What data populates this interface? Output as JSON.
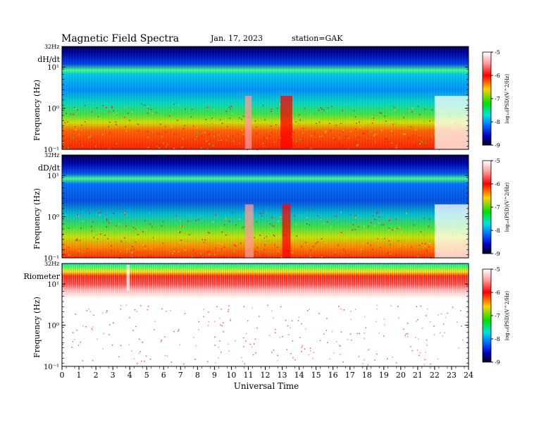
{
  "header": {
    "title": "Magnetic  Field  Spectra",
    "date": "Jan. 17, 2023",
    "station": "station=GAK"
  },
  "chart_data": {
    "type": "heatmap",
    "xlabel": "Universal Time",
    "x_ticks": [
      "0",
      "1",
      "2",
      "3",
      "4",
      "5",
      "6",
      "7",
      "8",
      "9",
      "10",
      "11",
      "12",
      "13",
      "14",
      "15",
      "16",
      "17",
      "18",
      "19",
      "20",
      "21",
      "22",
      "23",
      "24"
    ],
    "xlim": [
      0,
      24
    ],
    "y_scale": "log",
    "colorbar": {
      "label": "log₁₀(PSD)(V^2/Hz)",
      "ticks": [
        "-5",
        "-6",
        "-7",
        "-8",
        "-9"
      ],
      "range": [
        -9,
        -5
      ]
    },
    "panels": [
      {
        "name": "dH/dt",
        "ylabel": "Frequency  (Hz)",
        "top_label": "32Hz",
        "y_ticks": [
          "10¹",
          "10⁰",
          "10⁻¹"
        ],
        "events": [
          {
            "start": 10.8,
            "end": 11.2,
            "level": -5.6
          },
          {
            "start": 12.9,
            "end": 13.6,
            "level": -6.2
          },
          {
            "start": 22.0,
            "end": 24.0,
            "level": -5.3
          }
        ]
      },
      {
        "name": "dD/dt",
        "ylabel": "Frequency  (Hz)",
        "top_label": "32Hz",
        "y_ticks": [
          "10¹",
          "10⁰",
          "10⁻¹"
        ],
        "events": [
          {
            "start": 10.8,
            "end": 11.3,
            "level": -5.8
          },
          {
            "start": 13.0,
            "end": 13.5,
            "level": -6.0
          },
          {
            "start": 22.0,
            "end": 24.0,
            "level": -5.3
          }
        ]
      },
      {
        "name": "Riometer",
        "ylabel": "Frequency  (Hz)",
        "top_label": "32Hz",
        "y_ticks": [
          "10¹",
          "10⁰",
          "10⁻¹"
        ],
        "events": [
          {
            "start": 3.8,
            "end": 4.0,
            "level": -5.0
          }
        ]
      }
    ]
  }
}
